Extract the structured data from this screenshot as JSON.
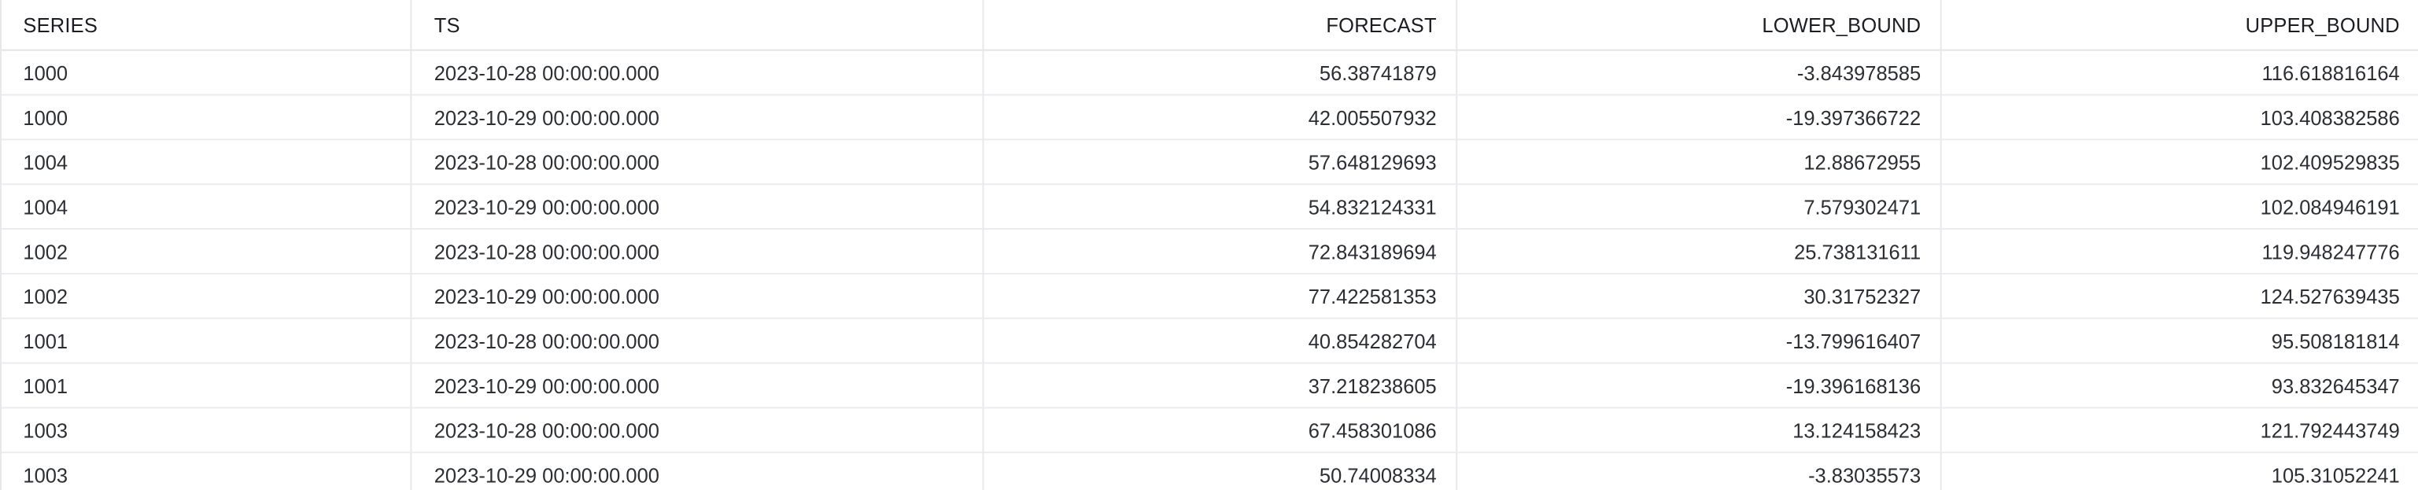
{
  "columns": [
    {
      "label": "SERIES",
      "align": "left"
    },
    {
      "label": "TS",
      "align": "left"
    },
    {
      "label": "FORECAST",
      "align": "right"
    },
    {
      "label": "LOWER_BOUND",
      "align": "right"
    },
    {
      "label": "UPPER_BOUND",
      "align": "right"
    }
  ],
  "rows": [
    [
      "1000",
      "2023-10-28 00:00:00.000",
      "56.38741879",
      "-3.843978585",
      "116.618816164"
    ],
    [
      "1000",
      "2023-10-29 00:00:00.000",
      "42.005507932",
      "-19.397366722",
      "103.408382586"
    ],
    [
      "1004",
      "2023-10-28 00:00:00.000",
      "57.648129693",
      "12.88672955",
      "102.409529835"
    ],
    [
      "1004",
      "2023-10-29 00:00:00.000",
      "54.832124331",
      "7.579302471",
      "102.084946191"
    ],
    [
      "1002",
      "2023-10-28 00:00:00.000",
      "72.843189694",
      "25.738131611",
      "119.948247776"
    ],
    [
      "1002",
      "2023-10-29 00:00:00.000",
      "77.422581353",
      "30.31752327",
      "124.527639435"
    ],
    [
      "1001",
      "2023-10-28 00:00:00.000",
      "40.854282704",
      "-13.799616407",
      "95.508181814"
    ],
    [
      "1001",
      "2023-10-29 00:00:00.000",
      "37.218238605",
      "-19.396168136",
      "93.832645347"
    ],
    [
      "1003",
      "2023-10-28 00:00:00.000",
      "67.458301086",
      "13.124158423",
      "121.792443749"
    ],
    [
      "1003",
      "2023-10-29 00:00:00.000",
      "50.74008334",
      "-3.83035573",
      "105.31052241"
    ]
  ]
}
